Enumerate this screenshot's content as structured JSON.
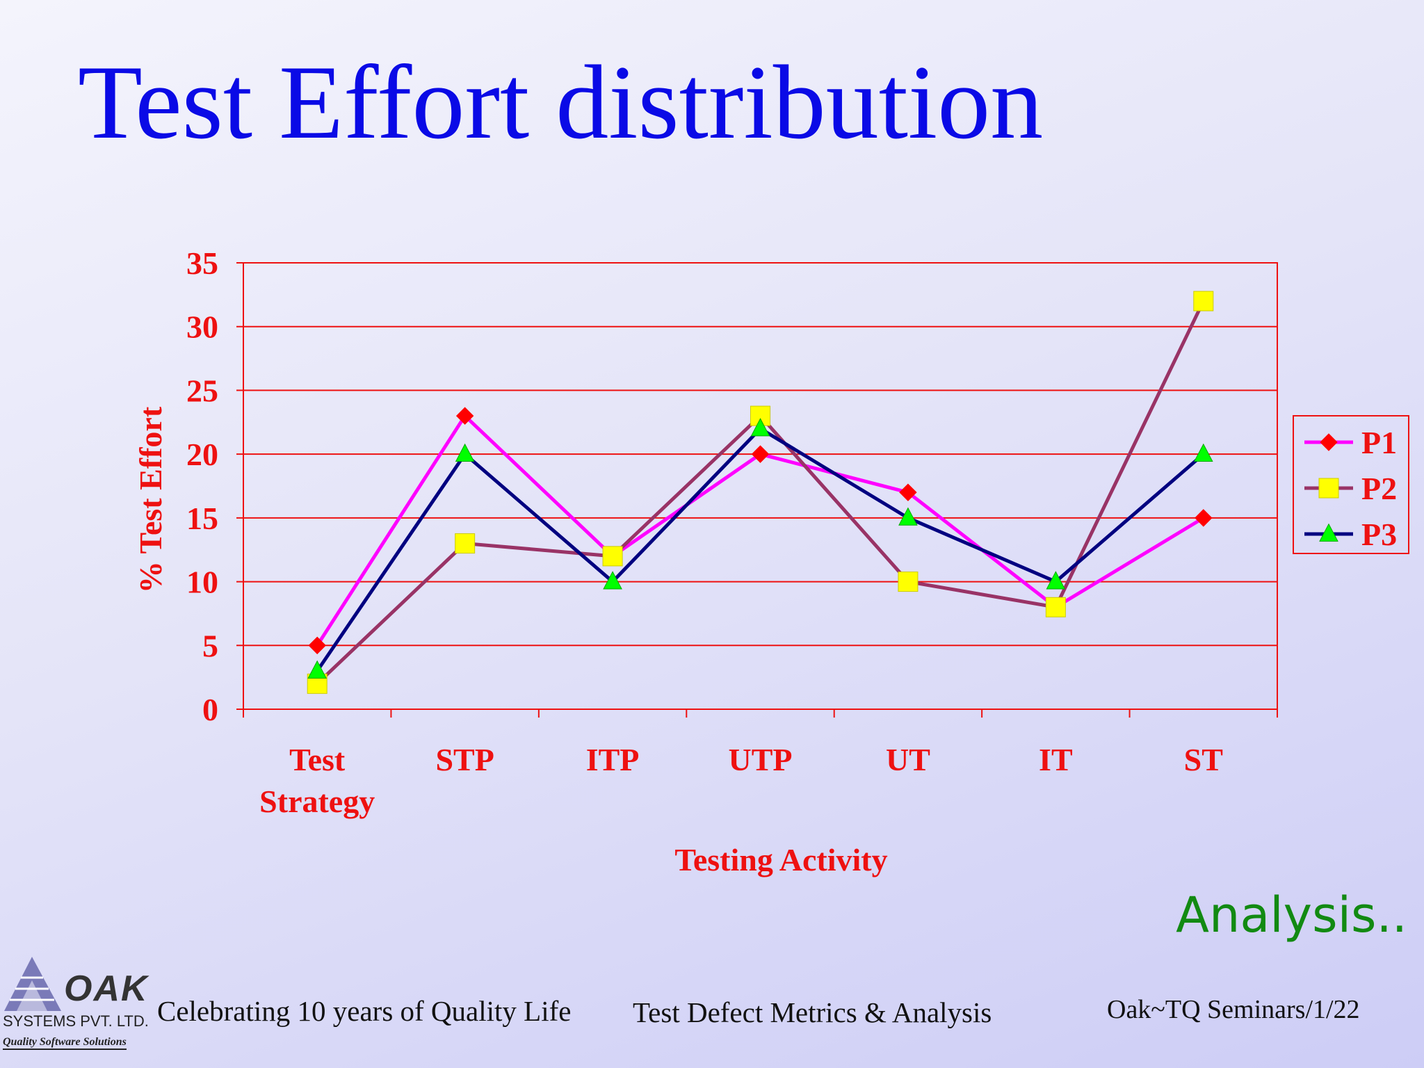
{
  "slide": {
    "title": "Test Effort distribution",
    "analysis_label": "Analysis..",
    "footer": {
      "tagline": "Celebrating 10 years of Quality Life",
      "topic": "Test Defect Metrics & Analysis",
      "page": "Oak~TQ Seminars/1/22"
    },
    "logo": {
      "name": "OAK",
      "company": "SYSTEMS PVT. LTD.",
      "tagline": "Quality Software Solutions"
    }
  },
  "chart_data": {
    "type": "line",
    "title": "",
    "xlabel": "Testing Activity",
    "ylabel": "% Test Effort",
    "categories": [
      "Test Strategy",
      "STP",
      "ITP",
      "UTP",
      "UT",
      "IT",
      "ST"
    ],
    "ylim": [
      0,
      35
    ],
    "yticks": [
      0,
      5,
      10,
      15,
      20,
      25,
      30,
      35
    ],
    "grid": true,
    "legend_position": "right",
    "series": [
      {
        "name": "P1",
        "values": [
          5,
          23,
          12,
          20,
          17,
          8,
          15
        ],
        "color": "#ff00ff",
        "marker": "diamond",
        "marker_color": "#ff0000"
      },
      {
        "name": "P2",
        "values": [
          2,
          13,
          12,
          23,
          10,
          8,
          32
        ],
        "color": "#993366",
        "marker": "square",
        "marker_color": "#ffff00"
      },
      {
        "name": "P3",
        "values": [
          3,
          20,
          10,
          22,
          15,
          10,
          20
        ],
        "color": "#000080",
        "marker": "triangle",
        "marker_color": "#00ff00"
      }
    ]
  }
}
